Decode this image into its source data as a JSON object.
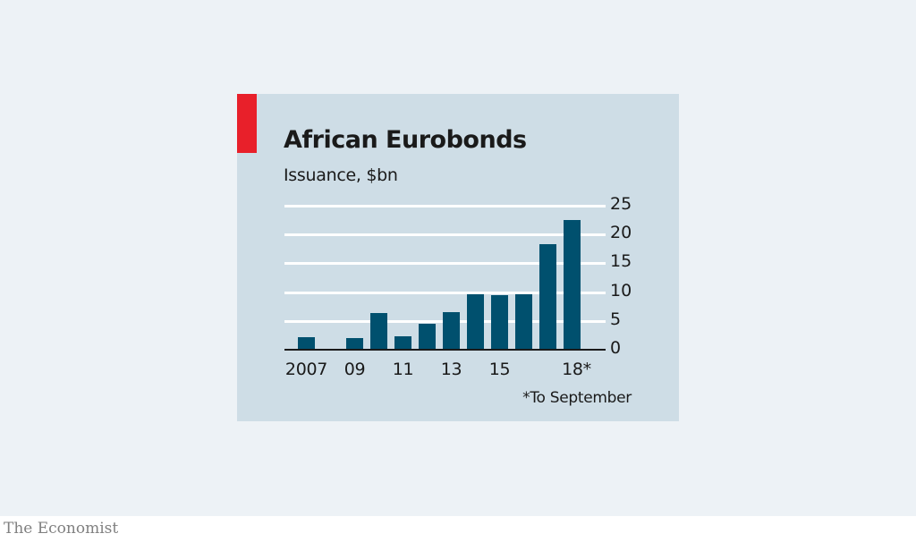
{
  "header": {
    "title": "African Eurobonds",
    "subtitle": "Issuance, $bn"
  },
  "footnote": "*To September",
  "footer": {
    "brand": "The Economist"
  },
  "colors": {
    "accent": "#e8202a",
    "bar": "#00506e",
    "panel": "#cedde6",
    "background": "#edf2f6"
  },
  "axis": {
    "y_ticks": [
      "25",
      "20",
      "15",
      "10",
      "5",
      "0"
    ],
    "x_ticks": [
      "2007",
      "09",
      "11",
      "13",
      "15",
      "18*"
    ]
  },
  "chart_data": {
    "type": "bar",
    "title": "African Eurobonds",
    "subtitle": "Issuance, $bn",
    "categories": [
      "2007",
      "2008",
      "2009",
      "2010",
      "2011",
      "2012",
      "2013",
      "2014",
      "2015",
      "2016",
      "2017",
      "2018*"
    ],
    "values": [
      2.2,
      0,
      2.0,
      6.3,
      2.3,
      4.5,
      6.5,
      9.7,
      9.5,
      9.7,
      18.4,
      22.5
    ],
    "xlabel": "",
    "ylabel": "Issuance, $bn",
    "ylim": [
      0,
      25
    ],
    "yticks": [
      0,
      5,
      10,
      15,
      20,
      25
    ],
    "xtick_labels": [
      "2007",
      "09",
      "11",
      "13",
      "15",
      "18*"
    ],
    "y_axis_position": "right",
    "grid": true,
    "annotations": [
      "*To September"
    ],
    "source": "The Economist"
  }
}
